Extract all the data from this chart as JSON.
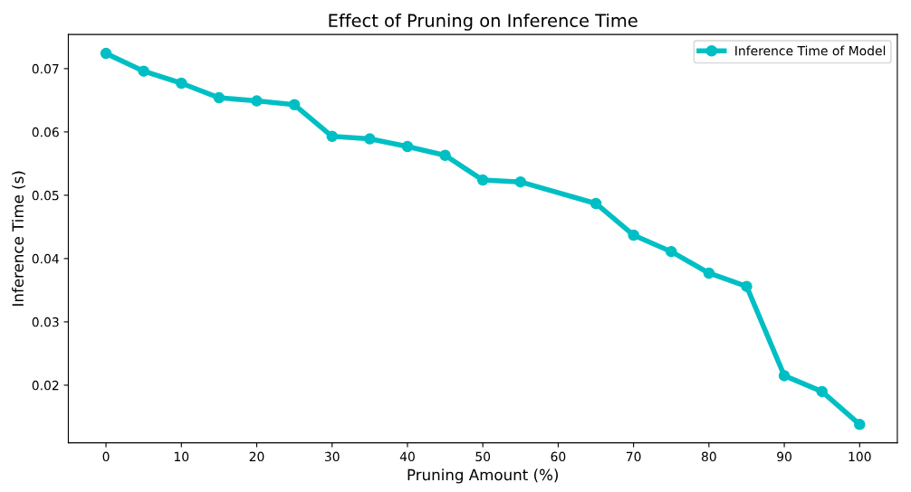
{
  "chart_data": {
    "type": "line",
    "title": "Effect of Pruning on Inference Time",
    "xlabel": "Pruning Amount (%)",
    "ylabel": "Inference Time (s)",
    "x": [
      0,
      5,
      10,
      15,
      20,
      25,
      30,
      35,
      40,
      45,
      50,
      55,
      65,
      70,
      75,
      80,
      85,
      90,
      95,
      100
    ],
    "series": [
      {
        "name": "Inference Time of Model",
        "color": "#00bfc4",
        "values": [
          0.0724,
          0.0696,
          0.0677,
          0.0654,
          0.0649,
          0.0643,
          0.0593,
          0.0589,
          0.0577,
          0.0563,
          0.0524,
          0.0521,
          0.0487,
          0.0437,
          0.0411,
          0.0377,
          0.0356,
          0.0215,
          0.019,
          0.0138
        ]
      }
    ],
    "xlim": [
      -5,
      105
    ],
    "xticks": [
      0,
      10,
      20,
      30,
      40,
      50,
      60,
      70,
      80,
      90,
      100
    ],
    "ylim": [
      0.0109,
      0.0754
    ],
    "yticks": [
      0.02,
      0.03,
      0.04,
      0.05,
      0.06,
      0.07
    ],
    "marker": "circle",
    "line_style": "solid",
    "legend": "top right",
    "grid": false
  }
}
